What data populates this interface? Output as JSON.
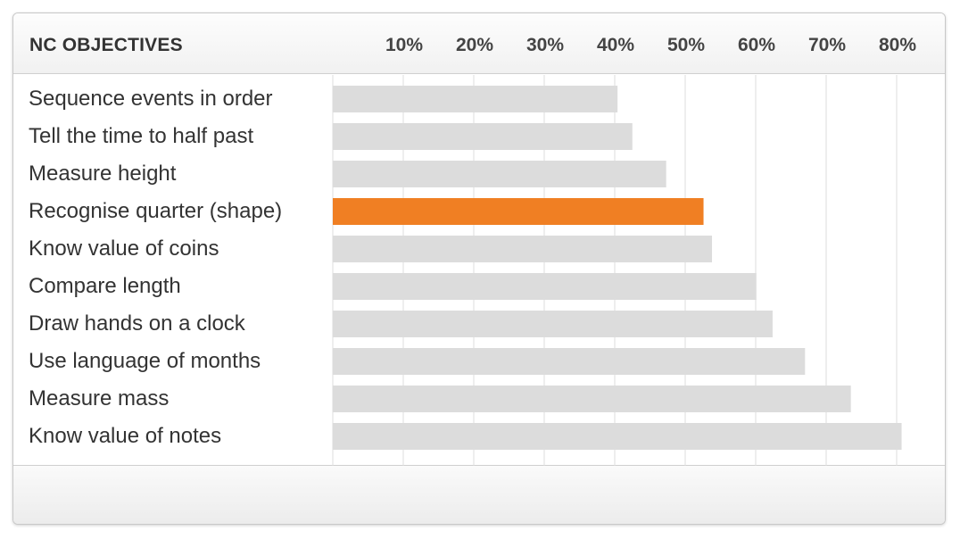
{
  "header": {
    "title": "NC OBJECTIVES"
  },
  "colors": {
    "bar": "#dcdcdc",
    "highlight": "#f07f23",
    "grid": "#dcdcdc"
  },
  "chart_data": {
    "type": "bar",
    "orientation": "horizontal",
    "title": "",
    "xlabel": "",
    "ylabel": "",
    "xlim": [
      0,
      81
    ],
    "ticks": [
      10,
      20,
      30,
      40,
      50,
      60,
      70,
      80
    ],
    "tick_labels": [
      "10%",
      "20%",
      "30%",
      "40%",
      "50%",
      "60%",
      "70%",
      "80%"
    ],
    "grid": true,
    "categories": [
      "Sequence events in order",
      "Tell the time to half past",
      "Measure height",
      "Recognise quarter (shape)",
      "Know value of coins",
      "Compare length",
      "Draw hands on a clock",
      "Use language of months",
      "Measure mass",
      "Know value of notes"
    ],
    "values": [
      40.4,
      42.5,
      47.3,
      52.6,
      53.8,
      60.1,
      62.4,
      67.0,
      73.5,
      80.7
    ],
    "highlight_index": 3
  }
}
